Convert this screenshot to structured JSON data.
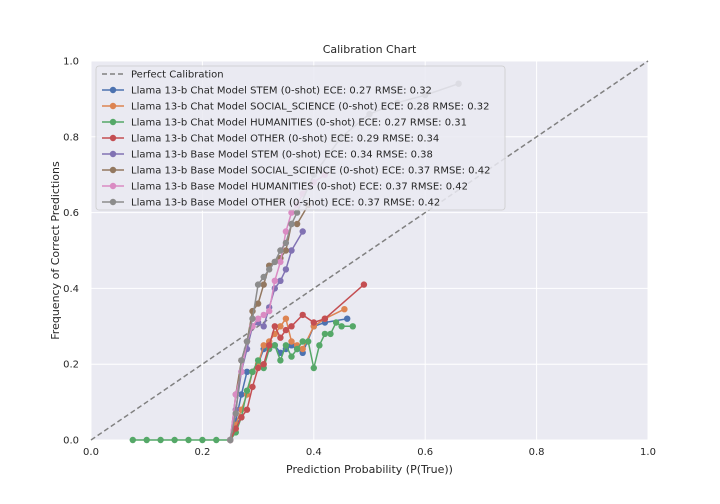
{
  "chart_data": {
    "type": "line",
    "title": "Calibration Chart",
    "xlabel": "Prediction Probability (P(True))",
    "ylabel": "Frequency of Correct Predictions",
    "xlim": [
      0,
      1
    ],
    "ylim": [
      0,
      1
    ],
    "x_ticks": [
      "0.0",
      "0.2",
      "0.4",
      "0.6",
      "0.8",
      "1.0"
    ],
    "y_ticks": [
      "0.0",
      "0.2",
      "0.4",
      "0.6",
      "0.8",
      "1.0"
    ],
    "grid": true,
    "legend_position": "top-left",
    "reference_line": {
      "name": "Perfect Calibration",
      "x": [
        0,
        1
      ],
      "y": [
        0,
        1
      ],
      "color": "#808080",
      "style": "dashed"
    },
    "series": [
      {
        "name": "Llama 13-b Chat Model STEM (0-shot) ECE: 0.27 RMSE: 0.32",
        "color": "#4c72b0",
        "x": [
          0.25,
          0.26,
          0.27,
          0.28,
          0.29,
          0.3,
          0.31,
          0.32,
          0.33,
          0.34,
          0.35,
          0.36,
          0.37,
          0.38,
          0.4,
          0.42,
          0.46
        ],
        "y": [
          0.0,
          0.05,
          0.12,
          0.18,
          0.18,
          0.2,
          0.24,
          0.25,
          0.25,
          0.23,
          0.24,
          0.25,
          0.24,
          0.23,
          0.3,
          0.31,
          0.32
        ]
      },
      {
        "name": "Llama 13-b Chat Model SOCIAL_SCIENCE (0-shot) ECE: 0.28 RMSE: 0.32",
        "color": "#dd8452",
        "x": [
          0.25,
          0.26,
          0.27,
          0.28,
          0.29,
          0.3,
          0.31,
          0.32,
          0.33,
          0.34,
          0.35,
          0.36,
          0.37,
          0.38,
          0.4,
          0.42,
          0.455
        ],
        "y": [
          0.0,
          0.04,
          0.08,
          0.12,
          0.18,
          0.2,
          0.25,
          0.26,
          0.28,
          0.3,
          0.32,
          0.26,
          0.25,
          0.24,
          0.3,
          0.32,
          0.345
        ]
      },
      {
        "name": "Llama 13-b Chat Model HUMANITIES (0-shot) ECE: 0.27 RMSE: 0.31",
        "color": "#55a868",
        "x": [
          0.075,
          0.1,
          0.125,
          0.15,
          0.175,
          0.2,
          0.225,
          0.25,
          0.26,
          0.27,
          0.28,
          0.29,
          0.3,
          0.31,
          0.32,
          0.33,
          0.34,
          0.35,
          0.36,
          0.37,
          0.38,
          0.39,
          0.4,
          0.41,
          0.42,
          0.43,
          0.44,
          0.45,
          0.47
        ],
        "y": [
          0.0,
          0.0,
          0.0,
          0.0,
          0.0,
          0.0,
          0.0,
          0.0,
          0.02,
          0.06,
          0.13,
          0.18,
          0.21,
          0.19,
          0.24,
          0.25,
          0.21,
          0.25,
          0.22,
          0.24,
          0.26,
          0.26,
          0.19,
          0.25,
          0.28,
          0.28,
          0.31,
          0.3,
          0.3
        ]
      },
      {
        "name": "Llama 13-b Chat Model OTHER (0-shot) ECE: 0.29 RMSE: 0.34",
        "color": "#c44e52",
        "x": [
          0.25,
          0.26,
          0.27,
          0.28,
          0.29,
          0.3,
          0.31,
          0.32,
          0.33,
          0.34,
          0.35,
          0.36,
          0.38,
          0.4,
          0.42,
          0.49
        ],
        "y": [
          0.0,
          0.03,
          0.06,
          0.08,
          0.14,
          0.19,
          0.2,
          0.25,
          0.3,
          0.27,
          0.29,
          0.3,
          0.33,
          0.31,
          0.32,
          0.41
        ]
      },
      {
        "name": "Llama 13-b Base Model STEM (0-shot) ECE: 0.34 RMSE: 0.38",
        "color": "#8172b3",
        "x": [
          0.25,
          0.26,
          0.27,
          0.28,
          0.29,
          0.3,
          0.31,
          0.32,
          0.33,
          0.34,
          0.35,
          0.36,
          0.38
        ],
        "y": [
          0.0,
          0.08,
          0.18,
          0.24,
          0.3,
          0.31,
          0.3,
          0.35,
          0.4,
          0.42,
          0.45,
          0.5,
          0.55
        ]
      },
      {
        "name": "Llama 13-b Base Model SOCIAL_SCIENCE (0-shot) ECE: 0.37 RMSE: 0.42",
        "color": "#937860",
        "x": [
          0.25,
          0.26,
          0.27,
          0.28,
          0.29,
          0.3,
          0.31,
          0.32,
          0.33,
          0.34,
          0.35,
          0.36,
          0.37,
          0.39
        ],
        "y": [
          0.0,
          0.12,
          0.21,
          0.26,
          0.34,
          0.36,
          0.41,
          0.46,
          0.47,
          0.48,
          0.5,
          0.57,
          0.57,
          0.62
        ]
      },
      {
        "name": "Llama 13-b Base Model HUMANITIES (0-shot) ECE: 0.37 RMSE: 0.42",
        "color": "#da8bc3",
        "x": [
          0.25,
          0.26,
          0.27,
          0.28,
          0.29,
          0.3,
          0.31,
          0.32,
          0.33,
          0.34,
          0.35,
          0.36,
          0.37,
          0.38,
          0.4,
          0.42
        ],
        "y": [
          0.0,
          0.12,
          0.18,
          0.26,
          0.3,
          0.32,
          0.33,
          0.34,
          0.42,
          0.47,
          0.55,
          0.6,
          0.62,
          0.65,
          0.68,
          0.7
        ]
      },
      {
        "name": "Llama 13-b Base Model OTHER (0-shot) ECE: 0.37 RMSE: 0.42",
        "color": "#8c8c8c",
        "x": [
          0.25,
          0.26,
          0.27,
          0.28,
          0.29,
          0.3,
          0.31,
          0.32,
          0.33,
          0.34,
          0.35,
          0.36,
          0.37,
          0.4,
          0.45,
          0.5,
          0.55,
          0.6,
          0.66
        ],
        "y": [
          0.0,
          0.07,
          0.21,
          0.26,
          0.32,
          0.41,
          0.43,
          0.45,
          0.47,
          0.5,
          0.52,
          0.57,
          0.6,
          0.7,
          0.8,
          0.86,
          0.89,
          0.91,
          0.94
        ]
      }
    ]
  }
}
